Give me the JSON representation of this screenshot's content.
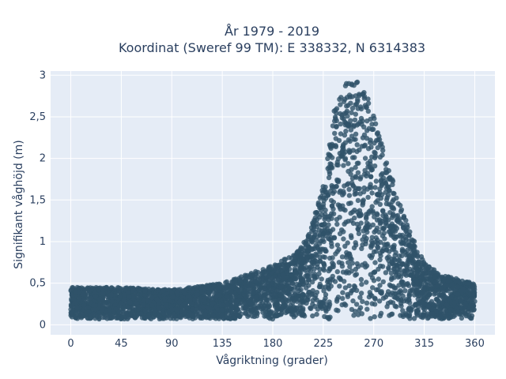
{
  "chart_data": {
    "type": "scatter",
    "title": "År 1979 - 2019",
    "subtitle": "Koordinat (Sweref 99 TM): E 338332, N 6314383",
    "xlabel": "Vågriktning (grader)",
    "ylabel": "Signifikant våghöjd (m)",
    "xlim": [
      -18,
      378
    ],
    "ylim": [
      -0.12,
      3.05
    ],
    "xticks": [
      0,
      45,
      90,
      135,
      180,
      225,
      270,
      315,
      360
    ],
    "xtick_labels": [
      "0",
      "45",
      "90",
      "135",
      "180",
      "225",
      "270",
      "315",
      "360"
    ],
    "yticks": [
      0,
      0.5,
      1,
      1.5,
      2,
      2.5,
      3
    ],
    "ytick_labels": [
      "0",
      "0,5",
      "1",
      "1,5",
      "2",
      "2,5",
      "3"
    ],
    "grid": true,
    "marker_color": "#2f5369",
    "plot_bg": "#e5ecf6",
    "direction_profile": [
      {
        "x": 0,
        "ymax": 0.45
      },
      {
        "x": 45,
        "ymax": 0.45
      },
      {
        "x": 90,
        "ymax": 0.42
      },
      {
        "x": 135,
        "ymax": 0.5
      },
      {
        "x": 180,
        "ymax": 0.72
      },
      {
        "x": 200,
        "ymax": 0.85
      },
      {
        "x": 215,
        "ymax": 1.2
      },
      {
        "x": 225,
        "ymax": 1.7
      },
      {
        "x": 235,
        "ymax": 2.6
      },
      {
        "x": 245,
        "ymax": 2.9
      },
      {
        "x": 260,
        "ymax": 2.93
      },
      {
        "x": 270,
        "ymax": 2.5
      },
      {
        "x": 280,
        "ymax": 2.05
      },
      {
        "x": 290,
        "ymax": 1.6
      },
      {
        "x": 300,
        "ymax": 1.2
      },
      {
        "x": 315,
        "ymax": 0.75
      },
      {
        "x": 330,
        "ymax": 0.6
      },
      {
        "x": 345,
        "ymax": 0.55
      },
      {
        "x": 360,
        "ymax": 0.5
      }
    ]
  }
}
